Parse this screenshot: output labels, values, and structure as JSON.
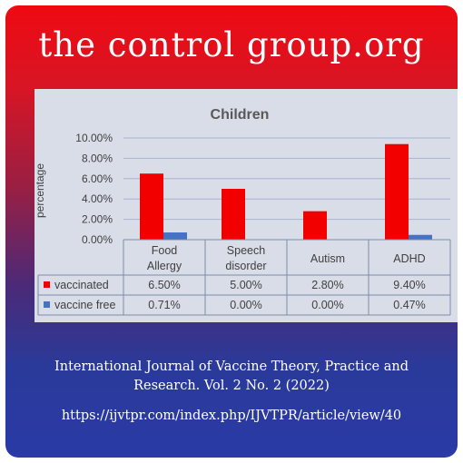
{
  "brand": "the control group.org",
  "citation": {
    "line1": "International Journal of Vaccine Theory, Practice and",
    "line2": "Research. Vol. 2 No. 2 (2022)",
    "url": "https://ijvtpr.com/index.php/IJVTPR/article/view/40"
  },
  "colors": {
    "vaccinated": "#f20000",
    "vaccine_free": "#4472c4",
    "panel": "#d9dde8"
  },
  "chart_data": {
    "type": "bar",
    "title": "Children",
    "ylabel": "percentage",
    "xlabel": "",
    "ylim": [
      0,
      10
    ],
    "y_ticks": [
      "0.00%",
      "2.00%",
      "4.00%",
      "6.00%",
      "8.00%",
      "10.00%"
    ],
    "y_tick_values": [
      0,
      2,
      4,
      6,
      8,
      10
    ],
    "grid": true,
    "categories": [
      [
        "Food",
        "Allergy"
      ],
      [
        "Speech",
        "disorder"
      ],
      [
        "Autism"
      ],
      [
        "ADHD"
      ]
    ],
    "series": [
      {
        "name": "vaccinated",
        "values": [
          6.5,
          5.0,
          2.8,
          9.4
        ],
        "labels": [
          "6.50%",
          "5.00%",
          "2.80%",
          "9.40%"
        ]
      },
      {
        "name": "vaccine free",
        "values": [
          0.71,
          0.0,
          0.0,
          0.47
        ],
        "labels": [
          "0.71%",
          "0.00%",
          "0.00%",
          "0.47%"
        ]
      }
    ],
    "legend": "data-table"
  }
}
